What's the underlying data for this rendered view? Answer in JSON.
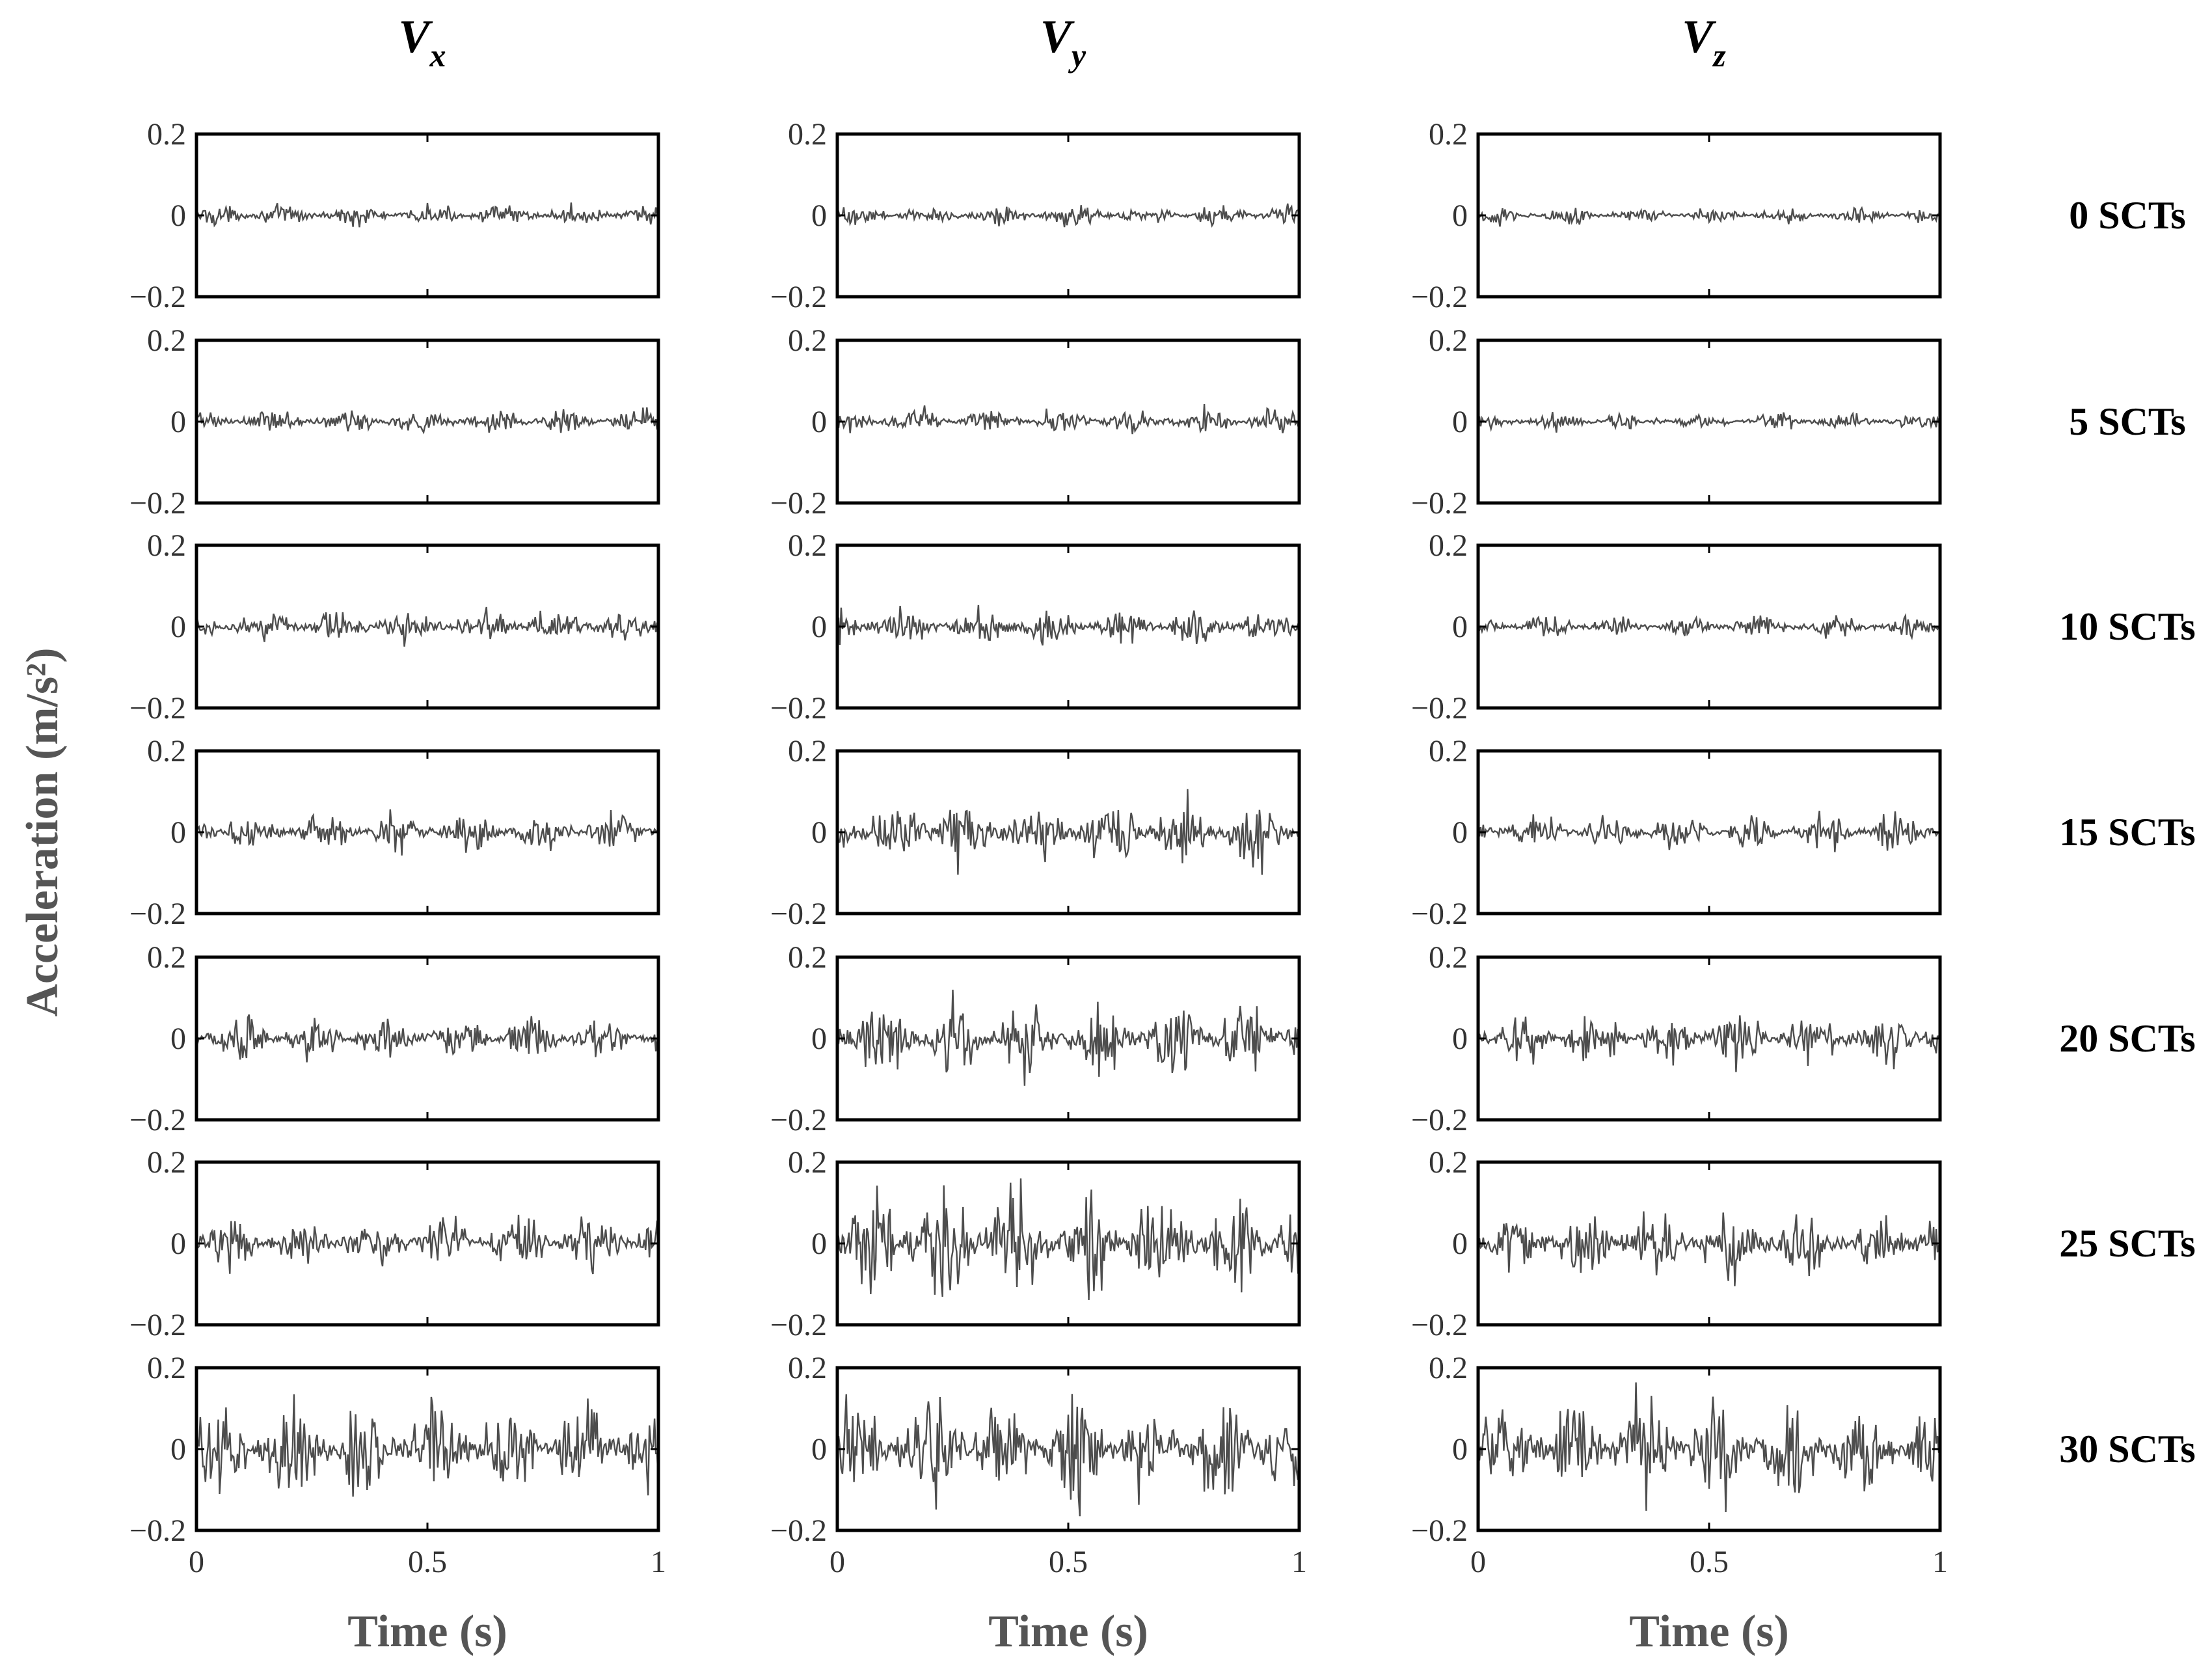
{
  "chart_data": {
    "type": "line",
    "ylabel": "Acceleration (m/s²)",
    "xlabel": "Time (s)",
    "columns": [
      {
        "symbol": "V",
        "subscript": "x"
      },
      {
        "symbol": "V",
        "subscript": "y"
      },
      {
        "symbol": "V",
        "subscript": "z"
      }
    ],
    "rows": [
      "0 SCTs",
      "5 SCTs",
      "10 SCTs",
      "15 SCTs",
      "20 SCTs",
      "25 SCTs",
      "30 SCTs"
    ],
    "xlim": [
      0,
      1
    ],
    "ylim": [
      -0.2,
      0.2
    ],
    "xticks": [
      0,
      0.5,
      1
    ],
    "xtick_labels": [
      "0",
      "0.5",
      "1"
    ],
    "yticks": [
      0.2,
      0,
      -0.2
    ],
    "ytick_labels": [
      "0.2",
      "0",
      "−0.2"
    ],
    "line_color": "#4d4d4d",
    "amplitude_approx": [
      [
        0.04,
        0.04,
        0.03
      ],
      [
        0.05,
        0.05,
        0.03
      ],
      [
        0.06,
        0.07,
        0.04
      ],
      [
        0.07,
        0.12,
        0.07
      ],
      [
        0.08,
        0.14,
        0.1
      ],
      [
        0.1,
        0.2,
        0.13
      ],
      [
        0.18,
        0.2,
        0.2
      ]
    ]
  }
}
